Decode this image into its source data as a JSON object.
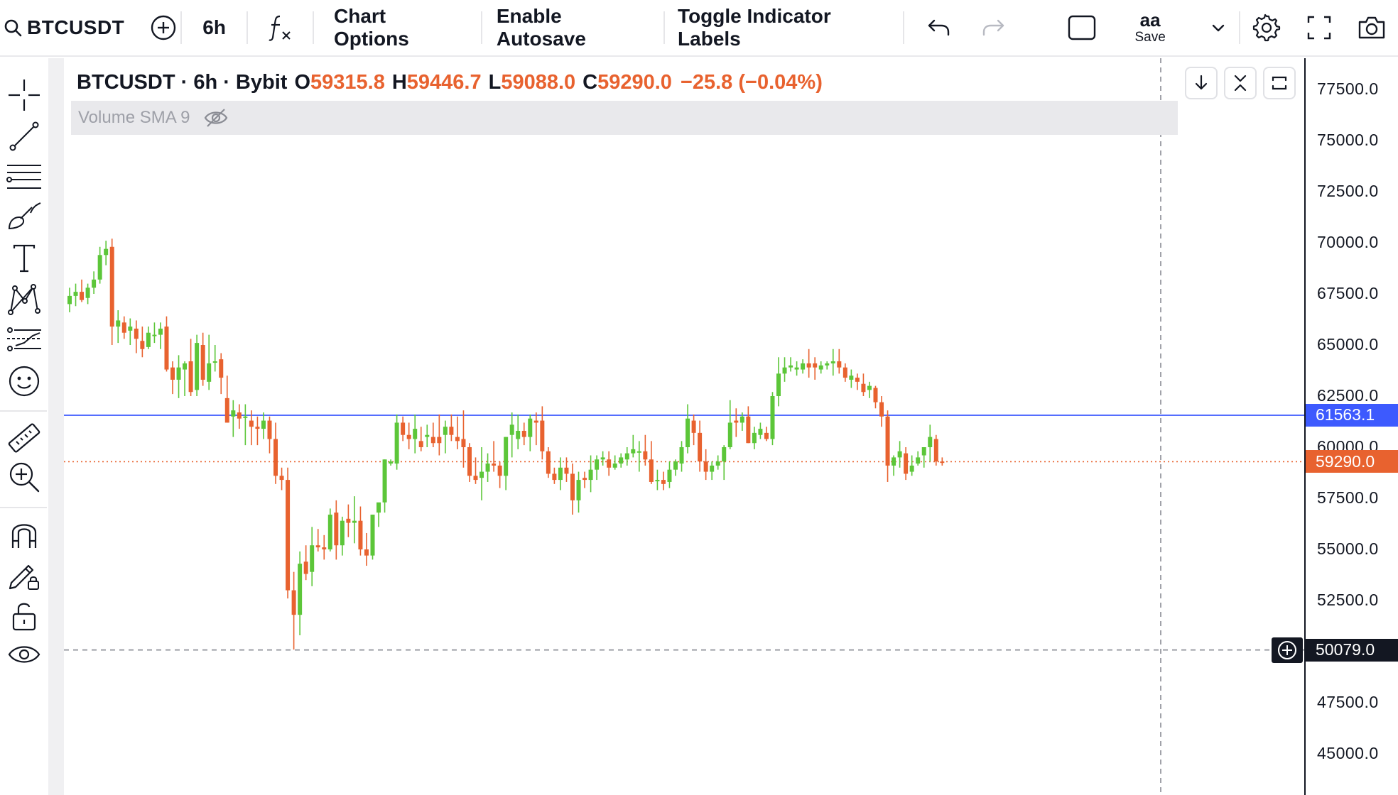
{
  "toolbar": {
    "symbol": "BTCUSDT",
    "interval": "6h",
    "indicators_glyph": "fx",
    "chart_options": "Chart Options",
    "enable_autosave": "Enable Autosave",
    "toggle_indicator_labels": "Toggle Indicator Labels",
    "layout_name": "aa",
    "save_label": "Save",
    "icons": [
      "search-icon",
      "add-compare-icon",
      "function-icon",
      "undo-icon",
      "redo-icon",
      "layout-square-icon",
      "chevron-down-icon",
      "gear-icon",
      "fullscreen-icon",
      "camera-icon"
    ]
  },
  "left_toolbar": {
    "tools": [
      "crosshair",
      "trend-line",
      "horizontal-lines",
      "brush",
      "text",
      "pattern",
      "forecast",
      "emoji",
      "ruler",
      "zoom-in",
      "magnet",
      "lock-drawings",
      "unlock",
      "eye"
    ]
  },
  "legend": {
    "title": "BTCUSDT · 6h · Bybit",
    "open_key": "O",
    "open": "59315.8",
    "high_key": "H",
    "high": "59446.7",
    "low_key": "L",
    "low": "59088.0",
    "close_key": "C",
    "close": "59290.0",
    "change": "−25.8 (−0.04%)"
  },
  "indicator": {
    "label": "Volume SMA 9"
  },
  "price_scale": {
    "labels": [
      "77500.0",
      "75000.0",
      "72500.0",
      "70000.0",
      "67500.0",
      "65000.0",
      "62500.0",
      "60000.0",
      "57500.0",
      "55000.0",
      "52500.0",
      "47500.0",
      "45000.0"
    ],
    "horizontal_line": {
      "label": "61563.1",
      "color": "#3d5afe"
    },
    "last_price": {
      "label": "59290.0",
      "color": "#e8622f"
    },
    "crosshair": {
      "label": "50079.0"
    }
  },
  "colors": {
    "up": "#5cc639",
    "down": "#e8622f",
    "text": "#131722"
  },
  "chart_data": {
    "type": "candlestick",
    "symbol": "BTCUSDT",
    "interval": "6h",
    "exchange": "Bybit",
    "ylim": [
      45000,
      77500
    ],
    "ohlc": [
      [
        67000,
        67800,
        66600,
        67400
      ],
      [
        67400,
        68000,
        66900,
        67600
      ],
      [
        67600,
        68200,
        67100,
        67200
      ],
      [
        67300,
        68000,
        67000,
        67800
      ],
      [
        67800,
        68600,
        67500,
        68200
      ],
      [
        68200,
        69800,
        68000,
        69400
      ],
      [
        69400,
        70100,
        68900,
        69700
      ],
      [
        69800,
        70200,
        65000,
        65900
      ],
      [
        65900,
        66700,
        65100,
        66200
      ],
      [
        66100,
        66400,
        65300,
        65600
      ],
      [
        65700,
        66300,
        65000,
        65900
      ],
      [
        65800,
        66200,
        64600,
        65300
      ],
      [
        65200,
        65900,
        64400,
        64800
      ],
      [
        64900,
        65900,
        64800,
        65600
      ],
      [
        65500,
        66100,
        65100,
        65500
      ],
      [
        65500,
        66100,
        64800,
        65800
      ],
      [
        65900,
        66400,
        63700,
        63800
      ],
      [
        63900,
        64200,
        62600,
        63300
      ],
      [
        63300,
        64500,
        62400,
        63900
      ],
      [
        63800,
        64200,
        62500,
        64100
      ],
      [
        64200,
        65300,
        62500,
        62700
      ],
      [
        62800,
        65500,
        62500,
        65100
      ],
      [
        65000,
        65600,
        63000,
        63300
      ],
      [
        63200,
        65500,
        62800,
        64100
      ],
      [
        64200,
        65000,
        63700,
        64200
      ],
      [
        64300,
        64600,
        62600,
        63400
      ],
      [
        62400,
        63500,
        61200,
        61200
      ],
      [
        61500,
        62300,
        60500,
        61800
      ],
      [
        61700,
        62100,
        60900,
        61400
      ],
      [
        61500,
        62100,
        60100,
        61500
      ],
      [
        61300,
        61800,
        60100,
        61000
      ],
      [
        61000,
        61500,
        60100,
        60900
      ],
      [
        60900,
        61700,
        60400,
        61300
      ],
      [
        61300,
        61500,
        59700,
        60400
      ],
      [
        60400,
        61200,
        58200,
        58600
      ],
      [
        58600,
        59000,
        57900,
        58400
      ],
      [
        58400,
        59000,
        52600,
        53000
      ],
      [
        53000,
        53900,
        50100,
        51800
      ],
      [
        51800,
        54900,
        50800,
        54300
      ],
      [
        54400,
        55200,
        53500,
        53800
      ],
      [
        53900,
        56100,
        53200,
        55200
      ],
      [
        55200,
        56000,
        54900,
        55100
      ],
      [
        55100,
        55700,
        54500,
        55000
      ],
      [
        55000,
        57000,
        54900,
        56700
      ],
      [
        56800,
        57400,
        54500,
        55200
      ],
      [
        55200,
        56600,
        54700,
        56400
      ],
      [
        56500,
        57200,
        55600,
        56300
      ],
      [
        56300,
        57600,
        55300,
        56400
      ],
      [
        56400,
        57100,
        54700,
        55000
      ],
      [
        55000,
        55800,
        54200,
        54700
      ],
      [
        54700,
        56700,
        54500,
        56700
      ],
      [
        56800,
        57000,
        56100,
        57300
      ],
      [
        57300,
        59400,
        56800,
        59400
      ],
      [
        59200,
        59400,
        59100,
        59300
      ],
      [
        59200,
        61600,
        58900,
        61200
      ],
      [
        61200,
        61500,
        60300,
        60600
      ],
      [
        60600,
        61200,
        59900,
        60400
      ],
      [
        60400,
        61600,
        59700,
        60900
      ],
      [
        60300,
        61000,
        59800,
        60000
      ],
      [
        60500,
        61100,
        60000,
        60600
      ],
      [
        60500,
        61200,
        60000,
        60200
      ],
      [
        60500,
        61600,
        59600,
        60200
      ],
      [
        60600,
        61300,
        59700,
        61000
      ],
      [
        61000,
        61600,
        60300,
        60600
      ],
      [
        60500,
        61500,
        59900,
        60300
      ],
      [
        60400,
        61800,
        59000,
        60000
      ],
      [
        60000,
        60200,
        58300,
        58600
      ],
      [
        58600,
        59500,
        58200,
        58400
      ],
      [
        58500,
        60000,
        57400,
        58800
      ],
      [
        58800,
        59700,
        58300,
        59200
      ],
      [
        59200,
        60300,
        58800,
        59100
      ],
      [
        59100,
        59300,
        58000,
        58600
      ],
      [
        58600,
        60500,
        57900,
        60500
      ],
      [
        60600,
        61700,
        59500,
        61100
      ],
      [
        60400,
        61600,
        59900,
        60800
      ],
      [
        60800,
        61200,
        60100,
        60500
      ],
      [
        60500,
        61600,
        59800,
        61400
      ],
      [
        61300,
        61700,
        60100,
        61200
      ],
      [
        61300,
        62000,
        59400,
        59800
      ],
      [
        59800,
        60000,
        58500,
        58700
      ],
      [
        58700,
        59000,
        58200,
        58400
      ],
      [
        58400,
        59500,
        57900,
        59000
      ],
      [
        59000,
        59500,
        58300,
        58700
      ],
      [
        58700,
        59200,
        56700,
        57400
      ],
      [
        57400,
        58800,
        56800,
        58400
      ],
      [
        58500,
        58800,
        58000,
        58400
      ],
      [
        58400,
        59600,
        57800,
        58900
      ],
      [
        58900,
        59600,
        58400,
        59400
      ],
      [
        59400,
        59800,
        59100,
        59500
      ],
      [
        59400,
        59800,
        58600,
        59000
      ],
      [
        59000,
        59600,
        58900,
        59200
      ],
      [
        59200,
        59700,
        59000,
        59500
      ],
      [
        59400,
        60000,
        59100,
        59700
      ],
      [
        59700,
        60600,
        59500,
        59900
      ],
      [
        59800,
        60300,
        58800,
        59800
      ],
      [
        59800,
        60600,
        59100,
        59400
      ],
      [
        59400,
        60300,
        58200,
        58300
      ],
      [
        58400,
        58900,
        57900,
        58400
      ],
      [
        58400,
        58800,
        57900,
        58200
      ],
      [
        58300,
        59300,
        58000,
        58900
      ],
      [
        58900,
        59400,
        58600,
        59300
      ],
      [
        59200,
        60300,
        58800,
        60000
      ],
      [
        60000,
        62100,
        59700,
        61400
      ],
      [
        61300,
        61600,
        60100,
        60700
      ],
      [
        60700,
        61300,
        58800,
        59300
      ],
      [
        59300,
        59900,
        58400,
        58800
      ],
      [
        58800,
        59300,
        58400,
        59100
      ],
      [
        59100,
        59600,
        58900,
        59300
      ],
      [
        59300,
        60100,
        58400,
        60000
      ],
      [
        60000,
        62300,
        59900,
        61200
      ],
      [
        61300,
        61900,
        60500,
        61200
      ],
      [
        61200,
        61700,
        60800,
        61500
      ],
      [
        61500,
        62000,
        60200,
        60200
      ],
      [
        60200,
        61000,
        59900,
        60700
      ],
      [
        60600,
        61200,
        60400,
        60900
      ],
      [
        60700,
        61000,
        60300,
        60400
      ],
      [
        60400,
        62700,
        60100,
        62500
      ],
      [
        62500,
        64400,
        62000,
        63600
      ],
      [
        63600,
        64400,
        63200,
        63900
      ],
      [
        63900,
        64400,
        63700,
        64000
      ],
      [
        63800,
        64200,
        63500,
        63900
      ],
      [
        63800,
        64300,
        63600,
        64100
      ],
      [
        64100,
        64800,
        63400,
        63900
      ],
      [
        64100,
        64400,
        63300,
        63900
      ],
      [
        63800,
        64200,
        63600,
        64000
      ],
      [
        64000,
        64200,
        63800,
        64100
      ],
      [
        64100,
        64800,
        63500,
        64200
      ],
      [
        64200,
        64800,
        63600,
        63900
      ],
      [
        63900,
        64100,
        63200,
        63400
      ],
      [
        63300,
        63800,
        62900,
        63500
      ],
      [
        63400,
        63600,
        62800,
        63200
      ],
      [
        63100,
        63600,
        62500,
        62700
      ],
      [
        62800,
        63200,
        62400,
        63000
      ],
      [
        62900,
        63000,
        61900,
        62200
      ],
      [
        62200,
        62500,
        61000,
        61500
      ],
      [
        61500,
        61800,
        58300,
        59100
      ],
      [
        59100,
        59600,
        58600,
        59500
      ],
      [
        59500,
        60300,
        59000,
        59800
      ],
      [
        59700,
        60000,
        58400,
        58700
      ],
      [
        58800,
        59600,
        58600,
        59100
      ],
      [
        59200,
        59800,
        59100,
        59500
      ],
      [
        59600,
        59900,
        59000,
        60000
      ],
      [
        60000,
        61100,
        59300,
        60500
      ],
      [
        60400,
        60600,
        59100,
        59300
      ],
      [
        59300,
        59500,
        59100,
        59290
      ]
    ],
    "horizontal_line": 61563.1,
    "last_price": 59290.0,
    "crosshair_price": 50079.0
  }
}
